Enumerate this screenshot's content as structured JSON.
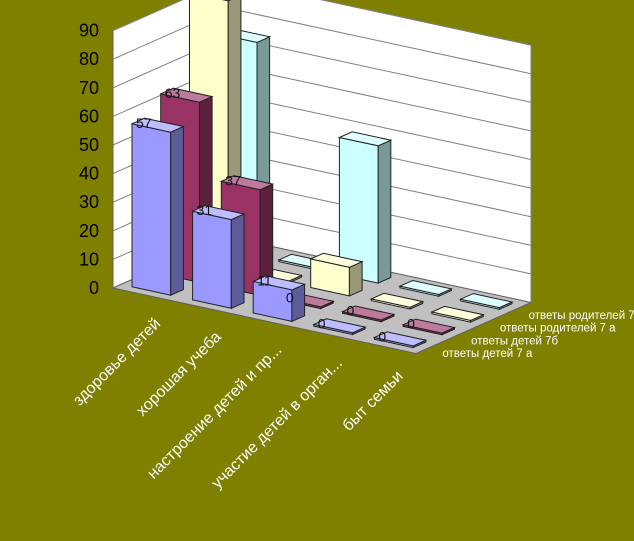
{
  "chart_data": {
    "type": "bar",
    "is_3d": true,
    "categories": [
      "здоровье детей",
      "хорошая учеба",
      "настроение детей и пр...",
      "участие детей в орган...",
      "быт семьи"
    ],
    "series": [
      {
        "name": "ответы детей  7 а",
        "values": [
          57,
          31,
          11,
          0,
          0
        ],
        "color": "#9999ff",
        "data_labels": true
      },
      {
        "name": "ответы детей  7б",
        "values": [
          63,
          37,
          0,
          0,
          0
        ],
        "color": "#993366",
        "data_labels": true
      },
      {
        "name": "ответы родителей 7 а",
        "values": [
          94,
          0,
          10,
          0,
          0
        ],
        "color": "#ffffcc",
        "data_labels": false
      },
      {
        "name": "ответы родителей 7 б",
        "values": [
          75,
          0,
          48,
          0,
          0
        ],
        "color": "#ccffff",
        "data_labels": false
      }
    ],
    "yticks": [
      0,
      10,
      20,
      30,
      40,
      50,
      60,
      70,
      80,
      90
    ],
    "ylim": [
      0,
      90
    ],
    "grid": true,
    "legend": "series-axis-right"
  }
}
